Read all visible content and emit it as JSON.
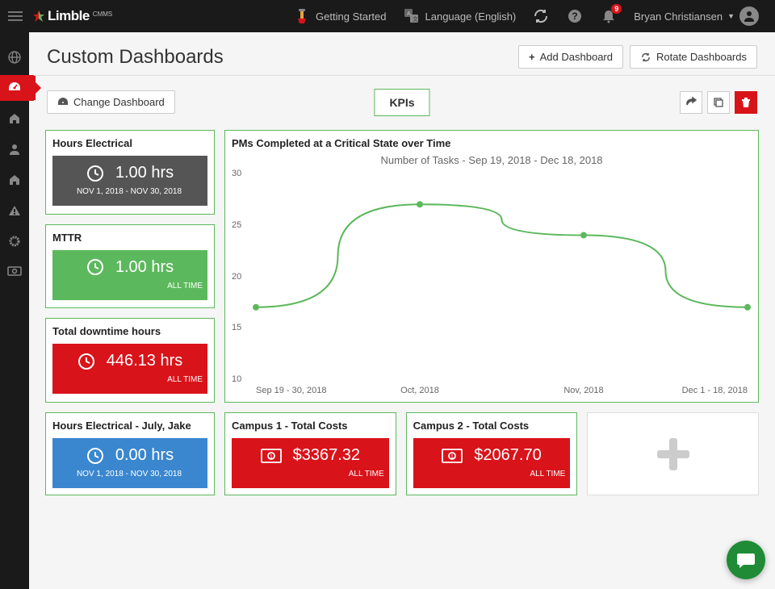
{
  "topbar": {
    "logo_text": "Limble",
    "logo_sub": "CMMS",
    "getting_started": "Getting Started",
    "language": "Language (English)",
    "notification_count": "9",
    "user_name": "Bryan Christiansen"
  },
  "page": {
    "title": "Custom Dashboards",
    "add_dashboard": "Add Dashboard",
    "rotate_dashboards": "Rotate Dashboards",
    "change_dashboard": "Change Dashboard",
    "tab_label": "KPIs"
  },
  "cards": {
    "hours_electrical": {
      "title": "Hours Electrical",
      "value": "1.00 hrs",
      "sub": "NOV 1, 2018 - NOV 30, 2018",
      "bg": "#555555"
    },
    "mttr": {
      "title": "MTTR",
      "value": "1.00 hrs",
      "sub": "ALL TIME",
      "bg": "#5cb85c"
    },
    "downtime": {
      "title": "Total downtime hours",
      "value": "446.13 hrs",
      "sub": "ALL TIME",
      "bg": "#d9131a"
    },
    "july_jake": {
      "title": "Hours Electrical - July, Jake",
      "value": "0.00 hrs",
      "sub": "NOV 1, 2018 - NOV 30, 2018",
      "bg": "#3a87cf"
    },
    "campus1": {
      "title": "Campus 1 - Total Costs",
      "value": "$3367.32",
      "sub": "ALL TIME",
      "bg": "#d9131a"
    },
    "campus2": {
      "title": "Campus 2 - Total Costs",
      "value": "$2067.70",
      "sub": "ALL TIME",
      "bg": "#d9131a"
    }
  },
  "chart": {
    "title": "PMs Completed at a Critical State over Time",
    "subtitle": "Number of Tasks - Sep 19, 2018 - Dec 18, 2018",
    "type": "line",
    "line_color": "#5cb85c",
    "marker_color": "#5cb85c",
    "line_width": 2,
    "marker_radius": 4,
    "background": "#ffffff",
    "ylim": [
      10,
      30
    ],
    "ytick_step": 5,
    "y_ticks": [
      30,
      25,
      20,
      15,
      10
    ],
    "x_labels": [
      "Sep 19 - 30, 2018",
      "Oct, 2018",
      "Nov, 2018",
      "Dec 1 - 18, 2018"
    ],
    "values": [
      17,
      27,
      24,
      17
    ]
  },
  "colors": {
    "green": "#5cb85c",
    "red": "#d9131a",
    "dark": "#1a1a1a"
  }
}
